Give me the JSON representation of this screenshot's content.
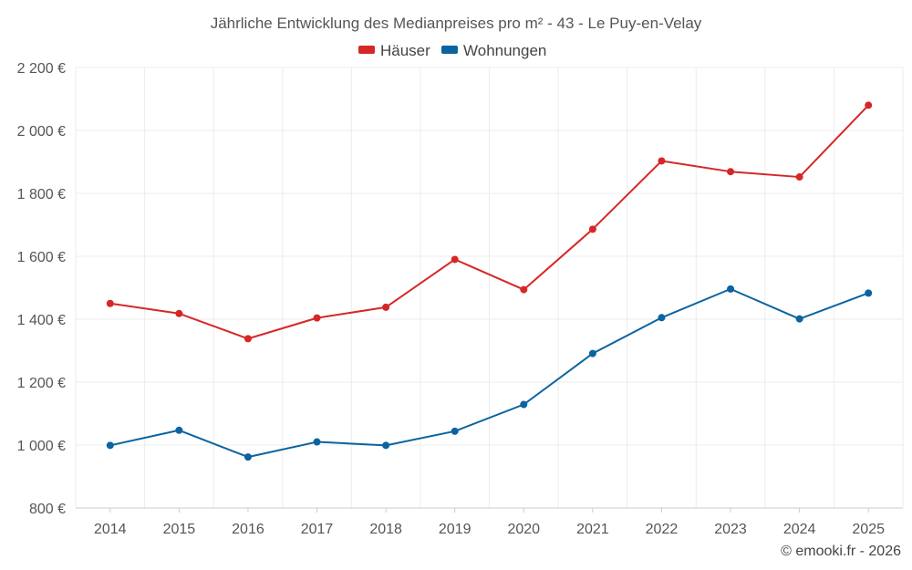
{
  "chart_data": {
    "type": "line",
    "title": "Jährliche Entwicklung des Medianpreises pro m² - 43 - Le Puy-en-Velay",
    "categories": [
      "2014",
      "2015",
      "2016",
      "2017",
      "2018",
      "2019",
      "2020",
      "2021",
      "2022",
      "2023",
      "2024",
      "2025"
    ],
    "series": [
      {
        "name": "Häuser",
        "color": "#d62728",
        "values": [
          1450,
          1418,
          1338,
          1404,
          1438,
          1590,
          1494,
          1686,
          1903,
          1869,
          1852,
          2080
        ]
      },
      {
        "name": "Wohnungen",
        "color": "#0b63a0",
        "values": [
          999,
          1047,
          962,
          1010,
          999,
          1044,
          1129,
          1291,
          1405,
          1496,
          1401,
          1483
        ]
      }
    ],
    "ylim": [
      800,
      2200
    ],
    "yticks": [
      800,
      1000,
      1200,
      1400,
      1600,
      1800,
      2000,
      2200
    ],
    "ytick_labels": [
      "800 €",
      "1 000 €",
      "1 200 €",
      "1 400 €",
      "1 600 €",
      "1 800 €",
      "2 000 €",
      "2 200 €"
    ],
    "grid": true,
    "legend": "top-center"
  },
  "credit": "© emooki.fr - 2026"
}
